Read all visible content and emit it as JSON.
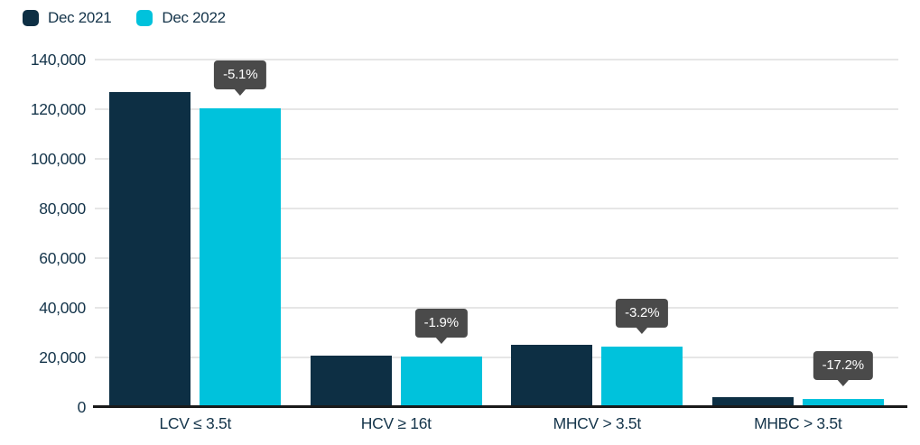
{
  "colors": {
    "series_2021": "#0d2f44",
    "series_2022": "#00c2dc",
    "badge_bg": "#4a4a4a",
    "badge_text": "#ffffff",
    "gridline": "#e6e6e6",
    "axis_line": "#1a1a1a",
    "label_text": "#14344a",
    "background": "#ffffff"
  },
  "chart_data": {
    "type": "bar",
    "title": "",
    "xlabel": "",
    "ylabel": "",
    "categories": [
      "LCV ≤ 3.5t",
      "HCV ≥ 16t",
      "MHCV > 3.5t",
      "MHBC > 3.5t"
    ],
    "series": [
      {
        "name": "Dec 2021",
        "color": "#0d2f44",
        "values": [
          126900,
          20800,
          25200,
          4000
        ]
      },
      {
        "name": "Dec 2022",
        "color": "#00c2dc",
        "values": [
          120400,
          20400,
          24400,
          3310
        ]
      }
    ],
    "change_labels": [
      "-5.1%",
      "-1.9%",
      "-3.2%",
      "-17.2%"
    ],
    "y_ticks": [
      140000,
      120000,
      100000,
      80000,
      60000,
      40000,
      20000,
      0
    ],
    "y_tick_labels": [
      "140,000",
      "120,000",
      "100,000",
      "80,000",
      "60,000",
      "40,000",
      "20,000",
      "0"
    ],
    "ylim": [
      0,
      140000
    ],
    "grid": true,
    "legend_position": "top-left"
  }
}
